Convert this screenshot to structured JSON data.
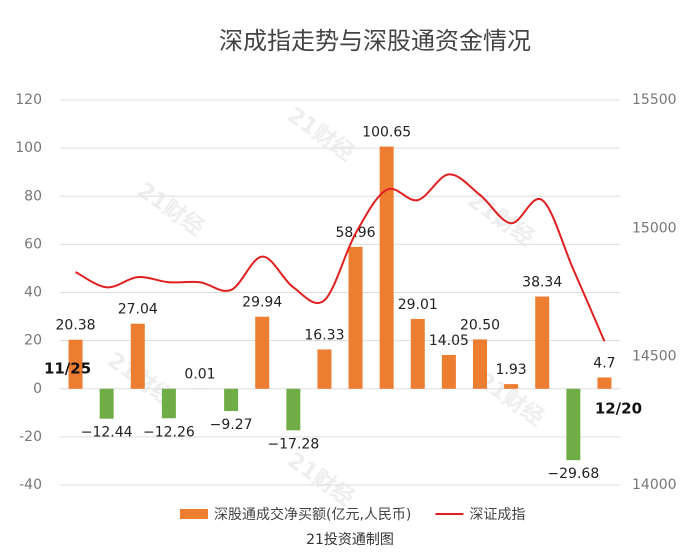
{
  "chart_data": {
    "type": "bar_line",
    "title": "深成指走势与深股通资金情况",
    "source": "21投资通制图",
    "watermark": "21财经",
    "categories": [
      "11/25",
      null,
      null,
      null,
      null,
      null,
      null,
      null,
      null,
      null,
      null,
      null,
      null,
      null,
      null,
      null,
      null,
      "12/20"
    ],
    "series": [
      {
        "name": "深股通成交净买额(亿元,人民币)",
        "type": "bar",
        "color": "#ed7d31",
        "negative_color": "#70ad47",
        "values": [
          20.38,
          -12.44,
          27.04,
          -12.26,
          0.01,
          -9.27,
          29.94,
          -17.28,
          16.33,
          58.96,
          100.65,
          29.01,
          14.05,
          20.5,
          1.93,
          38.34,
          -29.68,
          4.7
        ],
        "value_labels": [
          "20.38",
          "−12.44",
          "27.04",
          "−12.26",
          "0.01",
          "−9.27",
          "29.94",
          "−17.28",
          "16.33",
          "58.96",
          "100.65",
          "29.01",
          "14.05",
          "20.50",
          "1.93",
          "38.34",
          "−29.68",
          "4.7"
        ]
      },
      {
        "name": "深证成指",
        "type": "line",
        "axis": "y2",
        "color": "#e02020",
        "values": [
          14830,
          14770,
          14810,
          14790,
          14790,
          14760,
          14890,
          14770,
          14720,
          14980,
          15150,
          15110,
          15210,
          15130,
          15020,
          15110,
          14840,
          14560
        ]
      }
    ],
    "ylim": [
      -40,
      120
    ],
    "yticks": [
      -40,
      -20,
      0,
      20,
      40,
      60,
      80,
      100,
      120
    ],
    "y2lim": [
      14000,
      15500
    ],
    "y2ticks": [
      14000,
      14500,
      15000,
      15500
    ],
    "grid": true,
    "legend": "bottom"
  }
}
